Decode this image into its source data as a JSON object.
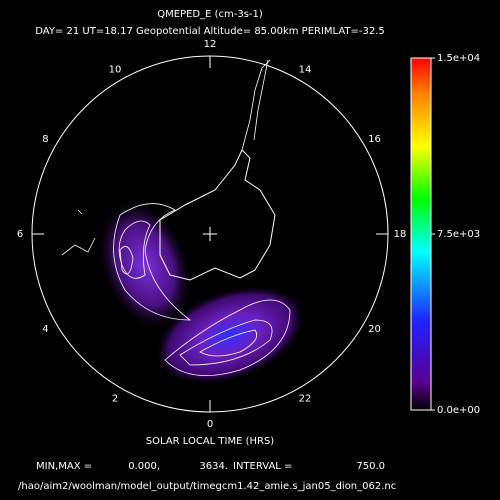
{
  "title": "QMEPED_E (cm-3s-1)",
  "subtitle": "DAY= 21 UT=18.17 Geopotential Altitude= 85.00km PERIMLAT=-32.5",
  "hour_labels": [
    0,
    2,
    4,
    6,
    8,
    10,
    12,
    14,
    16,
    18,
    20,
    22
  ],
  "colorbar": {
    "lim": [
      0,
      15000
    ],
    "ticks": [
      {
        "value": 0,
        "label": "0.0e+00"
      },
      {
        "value": 7500,
        "label": "7.5e+03"
      },
      {
        "value": 15000,
        "label": "1.5e+04"
      }
    ]
  },
  "x_label": "SOLAR LOCAL TIME (HRS)",
  "stats": {
    "label": "MIN,MAX =",
    "min": "0.000,",
    "max": "3634.",
    "interval_label": "INTERVAL =",
    "interval": "750.0"
  },
  "file": "/hao/aim2/woolman/model_output/timegcm1.42_amie.s_jan05_dion_062.nc"
}
